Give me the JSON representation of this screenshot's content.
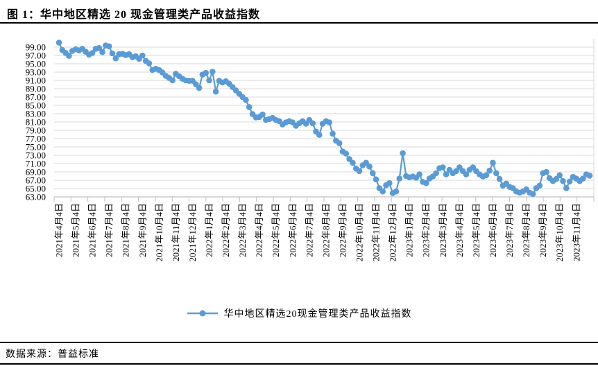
{
  "header": {
    "title": "图 1：华中地区精选 20 现金管理类产品收益指数"
  },
  "legend": {
    "label": "华中地区精选20现金管理类产品收益指数"
  },
  "footer": {
    "source_label": "数据来源：普益标准"
  },
  "colors": {
    "series": "#5B9BD5",
    "gridline": "#D9D9D9",
    "axis": "#BFBFBF",
    "text": "#000000",
    "rule": "#000000"
  },
  "chart_data": {
    "type": "line",
    "title": "图 1：华中地区精选 20 现金管理类产品收益指数",
    "source": "普益标准",
    "grid": "horizontal",
    "marker": "circle",
    "legend_position": "bottom",
    "ylim": [
      63,
      101
    ],
    "y_tick_labels": [
      "99.00",
      "97.00",
      "95.00",
      "93.00",
      "91.00",
      "89.00",
      "87.00",
      "85.00",
      "83.00",
      "81.00",
      "79.00",
      "77.00",
      "75.00",
      "73.00",
      "71.00",
      "69.00",
      "67.00",
      "65.00",
      "63.00"
    ],
    "x_tick_labels": [
      "2021年4月4日",
      "2021年5月4日",
      "2021年6月4日",
      "2021年7月4日",
      "2021年8月4日",
      "2021年9月4日",
      "2021年10月4日",
      "2021年11月4日",
      "2021年12月4日",
      "2022年1月4日",
      "2022年2月4日",
      "2022年3月4日",
      "2022年4月4日",
      "2022年5月4日",
      "2022年6月4日",
      "2022年7月4日",
      "2022年8月4日",
      "2022年9月4日",
      "2022年10月4日",
      "2022年11月4日",
      "2022年12月4日",
      "2023年1月4日",
      "2023年2月4日",
      "2023年3月4日",
      "2023年4月4日",
      "2023年5月4日",
      "2023年6月4日",
      "2023年7月4日",
      "2023年8月4日",
      "2023年9月4日",
      "2023年10月4日",
      "2023年11月4日"
    ],
    "points_per_x_label": 5,
    "series": [
      {
        "name": "华中地区精选20现金管理类产品收益指数",
        "values": [
          100.1,
          98.3,
          97.6,
          96.9,
          98.1,
          98.5,
          98.2,
          98.6,
          97.9,
          97.2,
          97.6,
          98.6,
          98.8,
          97.8,
          99.4,
          99.2,
          97.5,
          96.3,
          97.3,
          97.4,
          97.1,
          97.3,
          96.6,
          96.8,
          96.2,
          97.0,
          95.7,
          95.1,
          93.5,
          93.8,
          93.5,
          92.9,
          92.1,
          91.6,
          91.0,
          92.6,
          92.0,
          91.4,
          91.0,
          90.9,
          90.9,
          90.1,
          89.2,
          92.4,
          92.8,
          91.0,
          93.1,
          88.3,
          90.9,
          90.5,
          90.8,
          90.2,
          89.4,
          88.6,
          87.8,
          87.0,
          86.3,
          84.6,
          82.9,
          82.1,
          82.2,
          82.8,
          81.5,
          81.7,
          82.0,
          81.5,
          81.2,
          80.4,
          80.9,
          81.2,
          80.9,
          80.1,
          80.7,
          81.2,
          80.6,
          81.5,
          80.7,
          78.7,
          77.9,
          80.6,
          81.2,
          80.9,
          78.2,
          76.5,
          75.9,
          73.9,
          73.4,
          72.1,
          71.2,
          69.8,
          69.2,
          70.6,
          71.2,
          70.3,
          68.7,
          67.2,
          65.1,
          64.3,
          65.8,
          66.3,
          63.9,
          64.3,
          67.4,
          73.5,
          68.0,
          67.7,
          67.9,
          67.6,
          68.4,
          66.6,
          66.3,
          67.4,
          67.9,
          68.7,
          69.9,
          70.1,
          68.4,
          69.5,
          68.7,
          69.2,
          70.1,
          69.2,
          68.4,
          69.5,
          70.1,
          69.2,
          68.4,
          67.9,
          68.2,
          69.3,
          71.2,
          68.7,
          67.3,
          65.7,
          66.2,
          65.4,
          65.1,
          64.3,
          64.0,
          64.3,
          64.8,
          64.0,
          63.7,
          65.1,
          65.7,
          68.7,
          69.0,
          67.5,
          66.8,
          67.3,
          68.2,
          66.8,
          65.1,
          66.7,
          67.8,
          67.4,
          66.8,
          67.4,
          68.4,
          68.1
        ]
      }
    ]
  }
}
